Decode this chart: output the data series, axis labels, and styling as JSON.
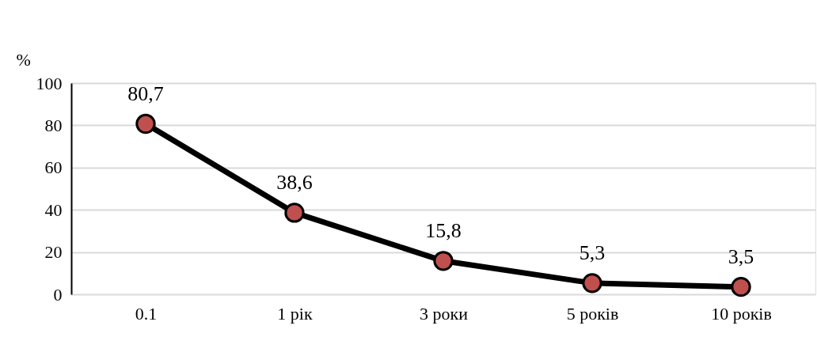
{
  "chart_data": {
    "type": "line",
    "ylabel": "%",
    "categories": [
      "0.1",
      "1 рік",
      "3 роки",
      "5 років",
      "10 років"
    ],
    "series": [
      {
        "color": "#000000",
        "colors": [
          "#c0504d",
          "#c0504d",
          "#c0504d",
          "#c0504d",
          "#c0504d"
        ],
        "values": [
          80.7,
          38.6,
          15.8,
          5.3,
          3.5
        ]
      }
    ],
    "value_labels": [
      "80,7",
      "38,6",
      "15,8",
      "5,3",
      "3,5"
    ],
    "marker": "circle",
    "line_style": "solid",
    "ylim": [
      0,
      100
    ],
    "yticks": [
      0,
      20,
      40,
      60,
      80,
      100
    ],
    "grid": "y"
  }
}
